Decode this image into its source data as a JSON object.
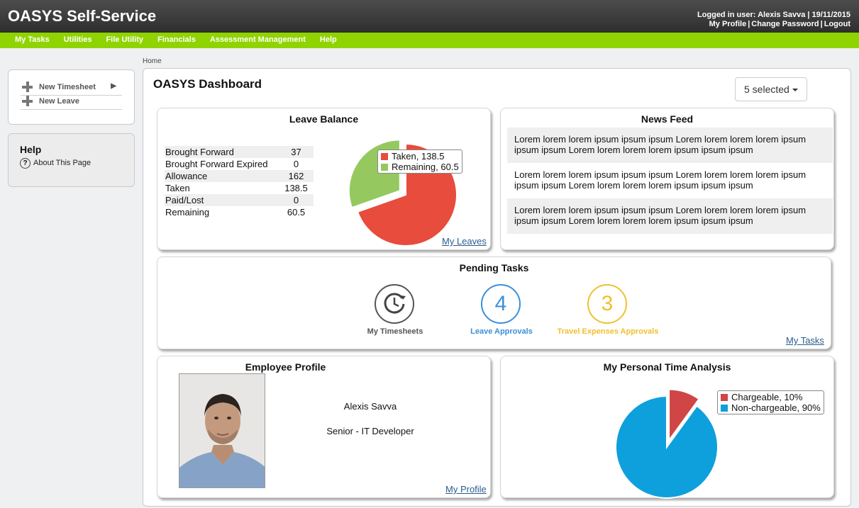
{
  "app": {
    "title": "OASYS Self-Service"
  },
  "user": {
    "logged_in": "Logged in user: Alexis Savva | 19/11/2015",
    "links": [
      "My Profile",
      "Change Password",
      "Logout"
    ]
  },
  "nav": [
    "My Tasks",
    "Utilities",
    "File Utility",
    "Financials",
    "Assessment Management",
    "Help"
  ],
  "breadcrumb": "Home",
  "sidebar": {
    "actions": [
      "New Timesheet",
      "New Leave"
    ],
    "help_title": "Help",
    "help_icon_glyph": "?",
    "help_link": "About This Page"
  },
  "dashboard": {
    "title": "OASYS Dashboard",
    "filter_label": "5 selected",
    "leave_balance": {
      "title": "Leave Balance",
      "rows": [
        {
          "label": "Brought Forward",
          "value": "37"
        },
        {
          "label": "Brought Forward Expired",
          "value": "0"
        },
        {
          "label": "Allowance",
          "value": "162"
        },
        {
          "label": "Taken",
          "value": "138.5"
        },
        {
          "label": "Paid/Lost",
          "value": "0"
        },
        {
          "label": "Remaining",
          "value": "60.5"
        }
      ],
      "legend": [
        "Taken, 138.5",
        "Remaining, 60.5"
      ],
      "link": "My Leaves",
      "colors": {
        "taken": "#e74c3c",
        "remaining": "#95c95f"
      }
    },
    "news_feed": {
      "title": "News Feed",
      "items": [
        "Lorem lorem lorem ipsum ipsum ipsum Lorem lorem lorem lorem ipsum ipsum ipsum Lorem lorem lorem lorem ipsum ipsum ipsum",
        "Lorem lorem lorem ipsum ipsum ipsum Lorem lorem lorem lorem ipsum ipsum ipsum Lorem lorem lorem lorem ipsum ipsum ipsum",
        "Lorem lorem lorem ipsum ipsum ipsum Lorem lorem lorem lorem ipsum ipsum ipsum Lorem lorem lorem lorem ipsum ipsum ipsum"
      ]
    },
    "pending_tasks": {
      "title": "Pending Tasks",
      "tasks": [
        {
          "label": "My Timesheets",
          "icon": "clock-icon",
          "color": "#555555"
        },
        {
          "label": "Leave Approvals",
          "count": "4",
          "color": "#3a8fd9"
        },
        {
          "label": "Travel Expenses Approvals",
          "count": "3",
          "color": "#f0c030"
        }
      ],
      "link": "My Tasks"
    },
    "employee_profile": {
      "title": "Employee Profile",
      "name": "Alexis Savva",
      "position": "Senior - IT Developer",
      "link": "My Profile"
    },
    "time_analysis": {
      "title": "My Personal Time Analysis",
      "legend": [
        "Chargeable, 10%",
        "Non-chargeable, 90%"
      ],
      "colors": {
        "chargeable": "#d04545",
        "non_chargeable": "#0ea0dc"
      }
    }
  },
  "chart_data": [
    {
      "type": "pie",
      "categories": [
        "Taken",
        "Remaining"
      ],
      "values": [
        138.5,
        60.5
      ],
      "exploded": "Remaining"
    },
    {
      "type": "pie",
      "categories": [
        "Chargeable",
        "Non-chargeable"
      ],
      "values": [
        10,
        90
      ],
      "exploded": "Chargeable"
    }
  ]
}
